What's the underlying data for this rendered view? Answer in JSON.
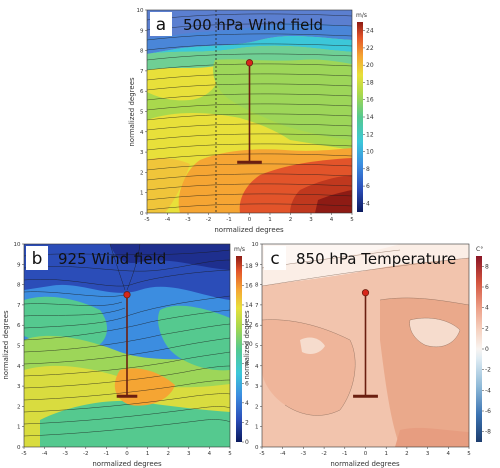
{
  "chart_data": [
    {
      "id": "a",
      "type": "heatmap",
      "panel_letter": "a",
      "title": "500 hPa Wind field",
      "xlabel": "normalized degrees",
      "ylabel": "normalized degrees",
      "xlim": [
        -5,
        5
      ],
      "ylim": [
        0,
        10
      ],
      "x_ticks": [
        -5,
        -4,
        -3,
        -2,
        -1,
        0,
        1,
        2,
        3,
        4,
        5
      ],
      "y_ticks": [
        0,
        1,
        2,
        3,
        4,
        5,
        6,
        7,
        8,
        9,
        10
      ],
      "colorbar": {
        "unit": "m/s",
        "range": [
          3,
          25
        ],
        "ticks": [
          4,
          6,
          8,
          10,
          12,
          14,
          16,
          18,
          20,
          22,
          24
        ],
        "colormap": "jet"
      },
      "overlay": {
        "station_top": [
          0,
          7.4
        ],
        "station_base": [
          0,
          2.5
        ],
        "base_halfwidth": 0.6
      },
      "grid": false
    },
    {
      "id": "b",
      "type": "heatmap",
      "panel_letter": "b",
      "title": "925 Wind field",
      "xlabel": "normalized degrees",
      "ylabel": "normalized degrees",
      "xlim": [
        -5,
        5
      ],
      "ylim": [
        0,
        10
      ],
      "x_ticks": [
        -5,
        -4,
        -3,
        -2,
        -1,
        0,
        1,
        2,
        3,
        4,
        5
      ],
      "y_ticks": [
        0,
        1,
        2,
        3,
        4,
        5,
        6,
        7,
        8,
        9,
        10
      ],
      "colorbar": {
        "unit": "m/s",
        "range": [
          0,
          19
        ],
        "ticks": [
          0,
          2,
          4,
          6,
          8,
          10,
          12,
          14,
          16,
          18
        ],
        "colormap": "jet"
      },
      "overlay": {
        "station_top": [
          0,
          7.5
        ],
        "station_base": [
          0,
          2.5
        ],
        "base_halfwidth": 0.5
      },
      "grid": false
    },
    {
      "id": "c",
      "type": "heatmap",
      "panel_letter": "c",
      "title": "850 hPa Temperature",
      "xlabel": "normalized degrees",
      "ylabel": "normalized degrees",
      "xlim": [
        -5,
        5
      ],
      "ylim": [
        0,
        10
      ],
      "x_ticks": [
        -5,
        -4,
        -3,
        -2,
        -1,
        0,
        1,
        2,
        3,
        4,
        5
      ],
      "y_ticks": [
        0,
        1,
        2,
        3,
        4,
        5,
        6,
        7,
        8,
        9,
        10
      ],
      "colorbar": {
        "unit": "C°",
        "range": [
          -9,
          9
        ],
        "ticks": [
          -8,
          -6,
          -4,
          -2,
          0,
          2,
          4,
          6,
          8
        ],
        "colormap": "RdBu_r"
      },
      "overlay": {
        "station_top": [
          0,
          7.6
        ],
        "station_base": [
          0,
          2.5
        ],
        "base_halfwidth": 0.6
      },
      "grid": false
    }
  ],
  "colors": {
    "station": "#6b1f10",
    "station_dot": "#d8261a"
  }
}
